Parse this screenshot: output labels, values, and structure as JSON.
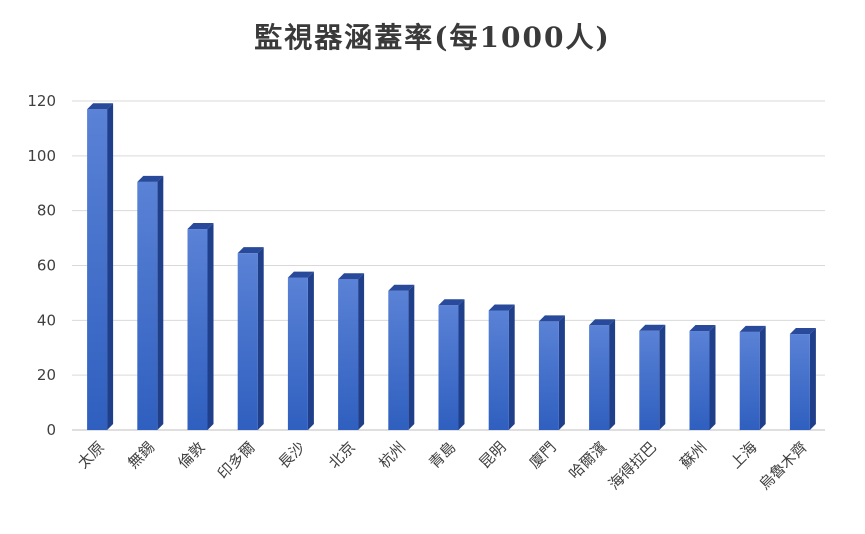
{
  "chart_data": {
    "type": "bar",
    "title": "監視器涵蓋率(每1000人)",
    "xlabel": "",
    "ylabel": "",
    "categories": [
      "太原",
      "無錫",
      "倫敦",
      "印多爾",
      "長沙",
      "北京",
      "杭州",
      "青島",
      "昆明",
      "廈門",
      "哈爾濱",
      "海得拉巴",
      "蘇州",
      "上海",
      "烏魯木齊"
    ],
    "values": [
      117,
      90.5,
      73.3,
      64.5,
      55.6,
      55,
      50.8,
      45.5,
      43.6,
      39.6,
      38.2,
      36.2,
      36.1,
      35.8,
      35
    ],
    "ylim": [
      0,
      120
    ],
    "yticks": [
      0,
      20,
      40,
      60,
      80,
      100,
      120
    ],
    "grid": true,
    "legend": "none",
    "colors": {
      "bar_face_top": "#5a82d6",
      "bar_face_bottom": "#2f5fbf",
      "bar_side": "#1f3f8a",
      "bar_top": "#294a9a",
      "grid": "#d9d9d9",
      "axis": "#bfbfbf",
      "tick_text": "#404040",
      "title_text": "#3a3a3a"
    }
  }
}
